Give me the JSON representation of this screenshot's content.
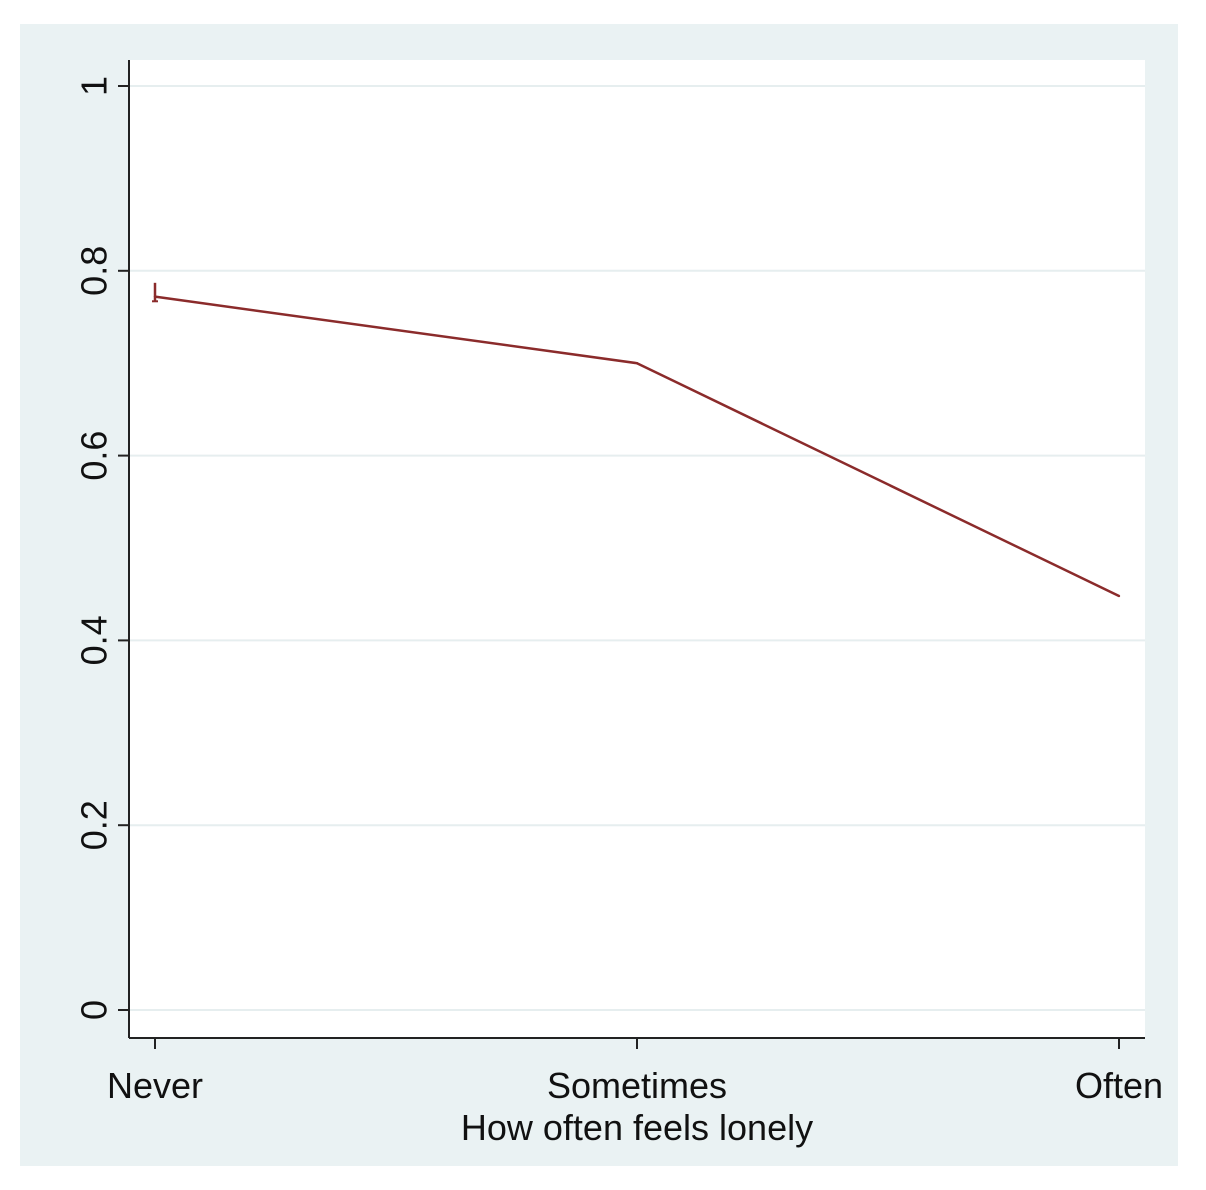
{
  "chart_data": {
    "type": "line",
    "title": "",
    "xlabel": "How often feels lonely",
    "ylabel": "",
    "categories": [
      "Never",
      "Sometimes",
      "Often"
    ],
    "series": [
      {
        "values": [
          0.772,
          0.7,
          0.448
        ],
        "color": "#8b2b2b"
      }
    ],
    "error_bar": {
      "category": "Never",
      "low": 0.767,
      "high": 0.787
    },
    "ylim": [
      0,
      1
    ],
    "yticks": [
      0,
      0.2,
      0.4,
      0.6,
      0.8,
      1
    ],
    "ytick_labels": [
      "0",
      "0.2",
      "0.4",
      "0.6",
      "0.8",
      "1"
    ],
    "grid": true,
    "colors": {
      "background": "#eaf2f3",
      "plot_area": "#ffffff",
      "gridline": "#e6eeef",
      "axis": "#222222",
      "line": "#8b2b2b"
    }
  }
}
